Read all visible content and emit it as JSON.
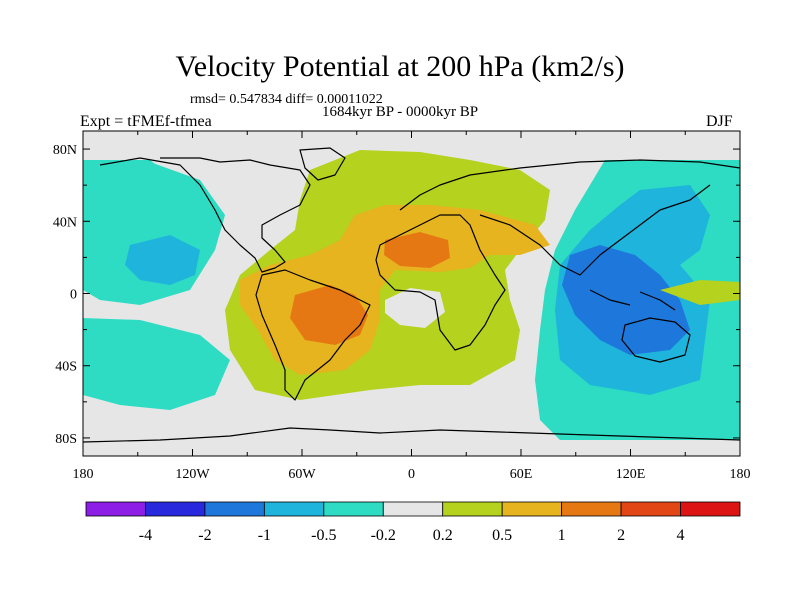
{
  "chart_data": {
    "type": "heatmap",
    "title": "Velocity Potential at 200 hPa (km2/s)",
    "stats_line": "rmsd= 0.547834 diff= 0.00011022",
    "period": "1684kyr BP - 0000kyr BP",
    "experiment": "Expt = tFMEf-tfmea",
    "season": "DJF",
    "x_ticks": [
      "180",
      "120W",
      "60W",
      "0",
      "60E",
      "120E",
      "180"
    ],
    "y_ticks": [
      "80N",
      "40N",
      "0",
      "40S",
      "80S"
    ],
    "xlim": [
      -180,
      180
    ],
    "ylim": [
      -90,
      90
    ],
    "colorbar": {
      "levels": [
        "-4",
        "-2",
        "-1",
        "-0.5",
        "-0.2",
        "0.2",
        "0.5",
        "1",
        "2",
        "4"
      ],
      "colors": [
        "#8c1ee6",
        "#2828dc",
        "#1e78dc",
        "#1eb4dc",
        "#2ddcc3",
        "#e6e6e6",
        "#b4d21e",
        "#e6b41e",
        "#e67814",
        "#e14614",
        "#dc1414"
      ]
    },
    "regions": [
      {
        "name": "Atlantic-Africa positive anomaly",
        "level": "0.2 to 0.5",
        "lon_range": [
          -100,
          60
        ],
        "lat_range": [
          -60,
          75
        ]
      },
      {
        "name": "South America maximum",
        "level": "1 to 2",
        "center": [
          -50,
          -10
        ]
      },
      {
        "name": "North Africa maximum",
        "level": "1 to 2",
        "center": [
          5,
          22
        ]
      },
      {
        "name": "Indo-Pacific negative anomaly",
        "level": "-1 to -2",
        "center": [
          110,
          0
        ]
      },
      {
        "name": "Eastern Pacific negative anomaly",
        "level": "-0.5 to -1",
        "center": [
          -140,
          15
        ]
      }
    ]
  }
}
